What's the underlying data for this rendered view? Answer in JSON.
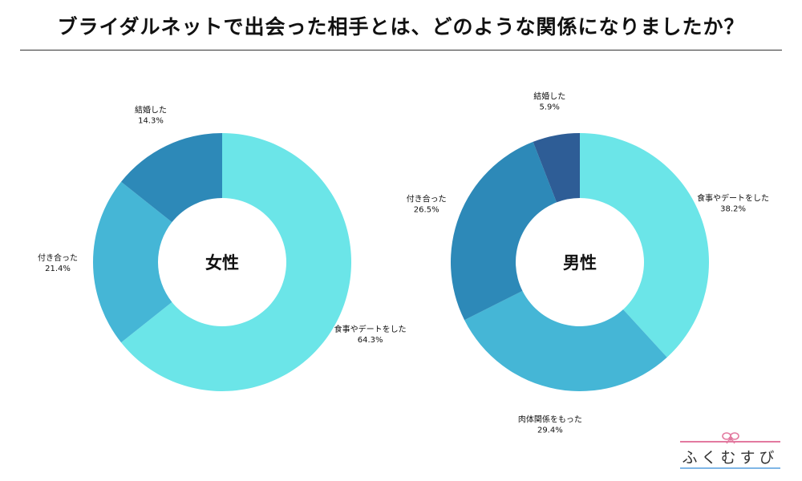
{
  "title": "ブライダルネットで出会った相手とは、どのような関係になりましたか？",
  "logo_text": "ふくむすび",
  "colors": {
    "light_cyan": "#6be5e8",
    "medium_blue": "#45b6d6",
    "steel_blue": "#2d89b8",
    "dark_blue": "#2e5d96",
    "logo_pink": "#e37aa0",
    "logo_blue": "#7fb6e6"
  },
  "chart_data": [
    {
      "type": "pie",
      "donut": true,
      "center_label": "女性",
      "slices": [
        {
          "label": "食事やデートをした",
          "value": 64.3,
          "display": "64.3%",
          "color": "#6be5e8"
        },
        {
          "label": "付き合った",
          "value": 21.4,
          "display": "21.4%",
          "color": "#45b6d6"
        },
        {
          "label": "結婚した",
          "value": 14.3,
          "display": "14.3%",
          "color": "#2d89b8"
        }
      ]
    },
    {
      "type": "pie",
      "donut": true,
      "center_label": "男性",
      "slices": [
        {
          "label": "食事やデートをした",
          "value": 38.2,
          "display": "38.2%",
          "color": "#6be5e8"
        },
        {
          "label": "肉体関係をもった",
          "value": 29.4,
          "display": "29.4%",
          "color": "#45b6d6"
        },
        {
          "label": "付き合った",
          "value": 26.5,
          "display": "26.5%",
          "color": "#2d89b8"
        },
        {
          "label": "結婚した",
          "value": 5.9,
          "display": "5.9%",
          "color": "#2e5d96"
        }
      ]
    }
  ]
}
